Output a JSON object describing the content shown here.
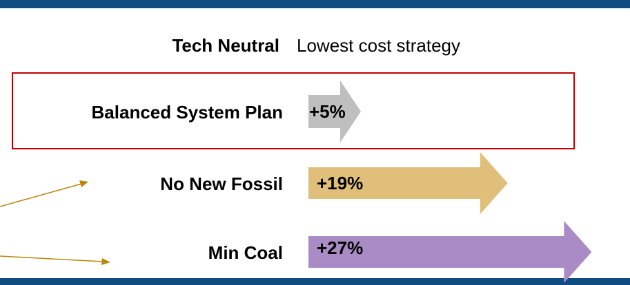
{
  "chart_data": {
    "type": "arrow",
    "baseline": {
      "name": "Tech Neutral",
      "note": "Lowest cost strategy"
    },
    "categories": [
      "Balanced System Plan",
      "No New Fossil",
      "Min Coal"
    ],
    "values": [
      5,
      19,
      27
    ],
    "value_labels": [
      "+5%",
      "+19%",
      "+27%"
    ],
    "colors": [
      "#bfbfbf",
      "#dfbf7a",
      "#a98bc6"
    ],
    "highlight": "Balanced System Plan"
  }
}
